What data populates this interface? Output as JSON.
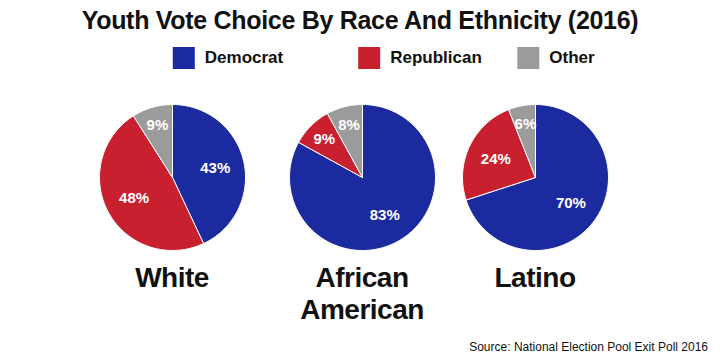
{
  "chart_data": {
    "type": "pie",
    "title": "Youth Vote Choice By Race And Ethnicity (2016)",
    "categories": [
      "Democrat",
      "Republican",
      "Other"
    ],
    "colors": [
      "#1b2a9f",
      "#c8202f",
      "#9b9b9b"
    ],
    "legend": "top",
    "data_labels": true,
    "series": [
      {
        "name": "White",
        "values": [
          43,
          48,
          9
        ],
        "value_labels": [
          "43%",
          "48%",
          "9%"
        ]
      },
      {
        "name": "African American",
        "values": [
          83,
          9,
          8
        ],
        "value_labels": [
          "83%",
          "9%",
          "8%"
        ]
      },
      {
        "name": "Latino",
        "values": [
          70,
          24,
          6
        ],
        "value_labels": [
          "70%",
          "24%",
          "6%"
        ]
      }
    ],
    "annotations": [
      "Source: National Election Pool Exit Poll 2016"
    ]
  }
}
